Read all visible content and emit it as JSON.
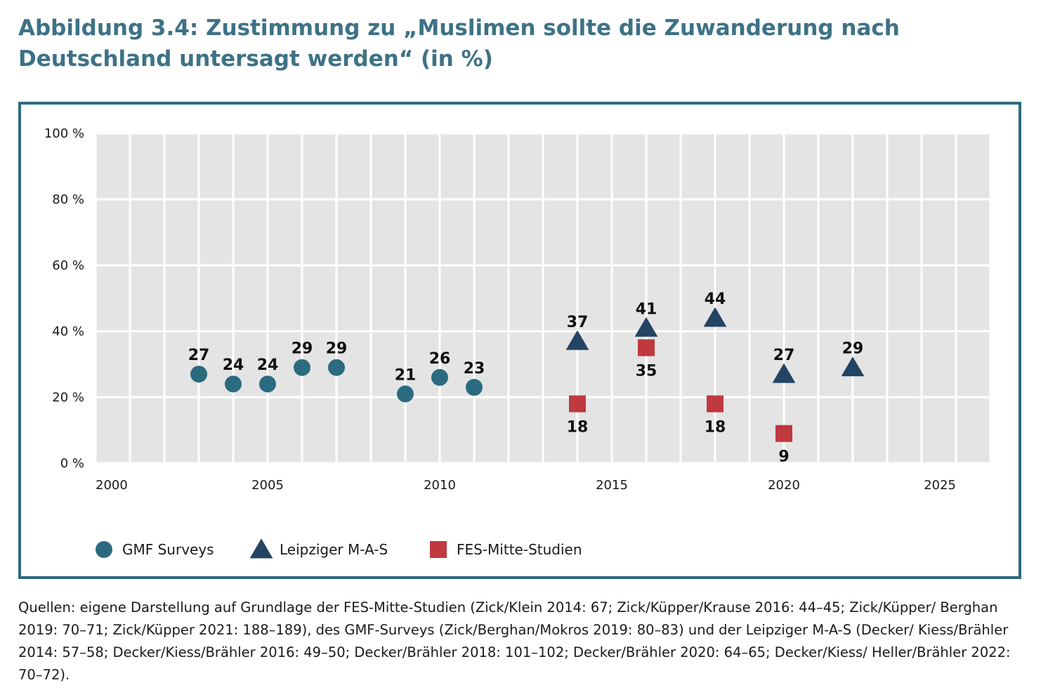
{
  "figure": {
    "title": "Abbildung 3.4: Zustimmung zu „Muslimen sollte die Zuwanderung nach Deutschland untersagt werden“ (in %)",
    "sources": "Quellen: eigene Darstellung auf Grundlage der FES-Mitte-Studien (Zick/Klein 2014: 67; Zick/Küpper/Krause 2016: 44–45; Zick/Küpper/ Berghan 2019: 70–71; Zick/Küpper 2021: 188–189), des GMF-Surveys (Zick/Berghan/Mokros 2019: 80–83) und der Leipziger M-A-S (Decker/ Kiess/Brähler 2014: 57–58; Decker/Kiess/Brähler 2016: 49–50; Decker/Brähler 2018: 101–102; Decker/Brähler 2020: 64–65; Decker/Kiess/ Heller/Brähler 2022: 70–72)."
  },
  "chart_data": {
    "type": "scatter",
    "title": "Abbildung 3.4: Zustimmung zu „Muslimen sollte die Zuwanderung nach Deutschland untersagt werden“ (in %)",
    "xlim": [
      2000,
      2026
    ],
    "ylim": [
      0,
      100
    ],
    "x_ticks": [
      2000,
      2005,
      2010,
      2015,
      2020,
      2025
    ],
    "y_ticks": [
      0,
      20,
      40,
      60,
      80,
      100
    ],
    "y_tick_labels": [
      "0 %",
      "20 %",
      "40 %",
      "60 %",
      "80 %",
      "100 %"
    ],
    "grid": true,
    "legend_position": "bottom-left",
    "series": [
      {
        "name": "GMF Surveys",
        "marker": "circle",
        "color": "#2b6b80",
        "label_position": "above",
        "x": [
          2003,
          2004,
          2005,
          2006,
          2007,
          2009,
          2010,
          2011
        ],
        "y": [
          27,
          24,
          24,
          29,
          29,
          21,
          26,
          23
        ]
      },
      {
        "name": "Leipziger M-A-S",
        "marker": "triangle",
        "color": "#234463",
        "label_position": "above",
        "x": [
          2014,
          2016,
          2018,
          2020,
          2022
        ],
        "y": [
          37,
          41,
          44,
          27,
          29
        ]
      },
      {
        "name": "FES-Mitte-Studien",
        "marker": "square",
        "color": "#c0393f",
        "label_position": "below",
        "x": [
          2014,
          2016,
          2018,
          2020
        ],
        "y": [
          18,
          35,
          18,
          9
        ]
      }
    ]
  }
}
